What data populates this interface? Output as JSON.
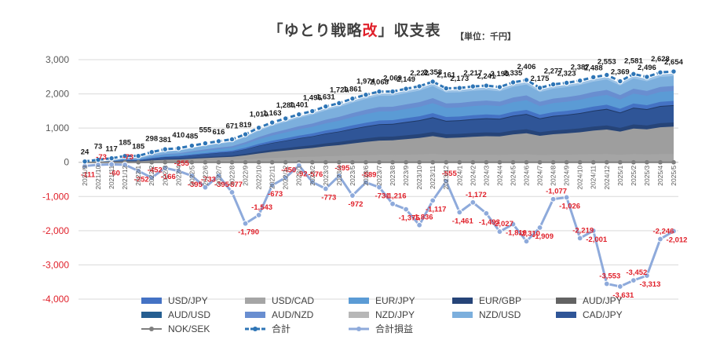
{
  "chart_data": {
    "type": "area",
    "title_prefix": "「ゆとり戦略",
    "title_highlight": "改",
    "title_suffix": "」収支表",
    "unit_label": "【単位：千円】",
    "ylim": [
      -4000,
      3000
    ],
    "y_ticks": [
      3000,
      2000,
      1000,
      0,
      -1000,
      -2000,
      -3000,
      -4000
    ],
    "y_tick_labels": [
      "3,000",
      "2,000",
      "1,000",
      "0",
      "-1,000",
      "-2,000",
      "-3,000",
      "-4,000"
    ],
    "categories": [
      "2021/9",
      "2021/10",
      "2021/11",
      "2021/12",
      "2022/1",
      "2022/2",
      "2022/3",
      "2022/4",
      "2022/5",
      "2022/6",
      "2022/7",
      "2022/8",
      "2022/9",
      "2022/10",
      "2022/11",
      "2022/12",
      "2023/1",
      "2023/2",
      "2023/3",
      "2023/4",
      "2023/5",
      "2023/6",
      "2023/7",
      "2023/8",
      "2023/9",
      "2023/10",
      "2023/11",
      "2023/12",
      "2024/1",
      "2024/2",
      "2024/3",
      "2024/4",
      "2024/5",
      "2024/6",
      "2024/7",
      "2024/8",
      "2024/9",
      "2024/10",
      "2024/11",
      "2024/12",
      "2025/1",
      "2025/2",
      "2025/3",
      "2025/4",
      "2025/5"
    ],
    "stack_series": [
      {
        "name": "USD/JPY",
        "color": "#4472c4"
      },
      {
        "name": "USD/CAD",
        "color": "#a5a5a5"
      },
      {
        "name": "EUR/JPY",
        "color": "#5b9bd5"
      },
      {
        "name": "EUR/GBP",
        "color": "#264478"
      },
      {
        "name": "AUD/JPY",
        "color": "#636363"
      },
      {
        "name": "AUD/USD",
        "color": "#255e91"
      },
      {
        "name": "AUD/NZD",
        "color": "#698ed0"
      },
      {
        "name": "NZD/JPY",
        "color": "#b7b7b7"
      },
      {
        "name": "NZD/USD",
        "color": "#7cafdd"
      },
      {
        "name": "CAD/JPY",
        "color": "#2f5597"
      }
    ],
    "series": [
      {
        "name": "NOK/SEK",
        "color": "#7f7f7f",
        "values": [
          0,
          0,
          0,
          0,
          0,
          0,
          0,
          0,
          0,
          0,
          0,
          0,
          0,
          0,
          0,
          0,
          0,
          0,
          0,
          0,
          0,
          0,
          0,
          0,
          0,
          0,
          0,
          0,
          0,
          0,
          0,
          0,
          0,
          0,
          0,
          0,
          0,
          0,
          0,
          0,
          0,
          0,
          0,
          0,
          0
        ]
      },
      {
        "name": "合計",
        "color": "#2e75b6",
        "values": [
          24,
          73,
          117,
          185,
          185,
          298,
          381,
          410,
          485,
          555,
          616,
          671,
          819,
          1010,
          1163,
          1280,
          1401,
          1496,
          1631,
          1729,
          1861,
          1974,
          2068,
          2069,
          2149,
          2222,
          2358,
          2161,
          2173,
          2217,
          2241,
          2199,
          2335,
          2406,
          2175,
          2277,
          2323,
          2387,
          2488,
          2553,
          2369,
          2581,
          2496,
          2628,
          2654
        ]
      },
      {
        "name": "合計損益",
        "color": "#8eaadb",
        "values": [
          -111,
          -73,
          -60,
          -73,
          -252,
          -452,
          -166,
          -255,
          -395,
          -733,
          -395,
          -877,
          -1790,
          -1543,
          -673,
          -450,
          -92,
          -576,
          -773,
          -395,
          -972,
          -589,
          -731,
          -1216,
          -1375,
          -1836,
          -1117,
          -555,
          -1461,
          -1172,
          -1493,
          -2027,
          -1810,
          -2310,
          -1909,
          -1077,
          -1026,
          -2219,
          -2001,
          -3553,
          -3631,
          -3452,
          -3313,
          -2246,
          -2012
        ]
      }
    ],
    "total_labels": [
      "24",
      "73",
      "117",
      "185",
      "185",
      "298",
      "381",
      "410",
      "485",
      "555",
      "616",
      "671",
      "819",
      "1,010",
      "1,163",
      "1,280",
      "1,401",
      "1,496",
      "1,631",
      "1,729",
      "1,861",
      "1,974",
      "2,068",
      "2,069",
      "2,149",
      "2,222",
      "2,358",
      "2,161",
      "2,173",
      "2,217",
      "2,241",
      "2,199",
      "2,335",
      "2,406",
      "2,175",
      "2,277",
      "2,323",
      "2,387",
      "2,488",
      "2,553",
      "2,369",
      "2,581",
      "2,496",
      "2,628",
      "2,654"
    ],
    "pl_labels": [
      "-111",
      "-73",
      "-60",
      "-73",
      "-252",
      "-452",
      "-166",
      "-255",
      "-395",
      "-733",
      "-395",
      "-877",
      "-1,790",
      "-1,543",
      "-673",
      "-450",
      "-92",
      "-576",
      "-773",
      "-395",
      "-972",
      "-589",
      "-731",
      "-1,216",
      "-1,375",
      "-1,836",
      "-1,117",
      "-555",
      "-1,461",
      "-1,172",
      "-1,493",
      "-2,027",
      "-1,810",
      "-2,310",
      "-1,909",
      "-1,077",
      "-1,026",
      "-2,219",
      "-2,001",
      "-3,553",
      "-3,631",
      "-3,452",
      "-3,313",
      "-2,246",
      "-2,012"
    ],
    "legend_position": "bottom",
    "legend_rows": [
      [
        "USD/JPY",
        "USD/CAD",
        "EUR/JPY",
        "EUR/GBP",
        "AUD/JPY"
      ],
      [
        "AUD/USD",
        "AUD/NZD",
        "NZD/JPY",
        "NZD/USD",
        "CAD/JPY"
      ],
      [
        "NOK/SEK",
        "合計",
        "合計損益"
      ]
    ],
    "grid": true
  }
}
